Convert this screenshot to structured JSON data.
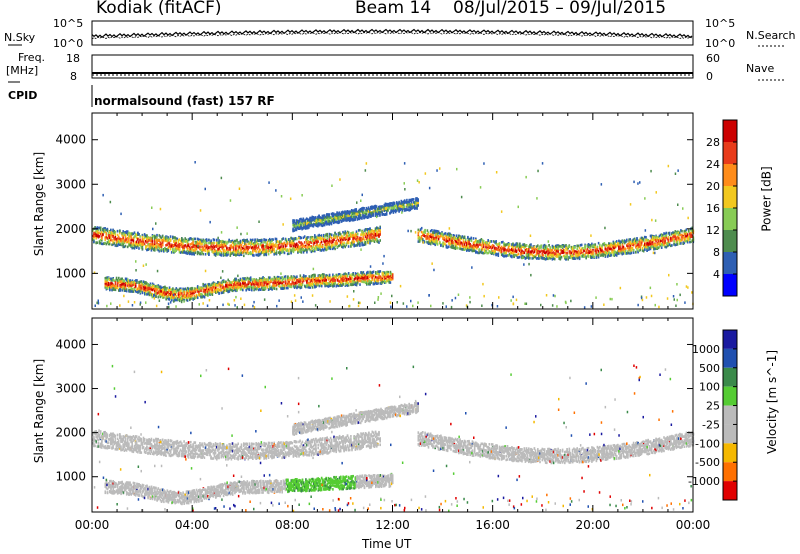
{
  "header": {
    "station": "Kodiak (fitACF)",
    "beam": "Beam 14",
    "date_range": "08/Jul/2015 – 09/Jul/2015"
  },
  "top_panels": {
    "nsky_label": "N.Sky",
    "nsky_ticks": [
      "10^5",
      "10^0"
    ],
    "nsearch_label": "N.Search",
    "nsearch_ticks": [
      "10^5",
      "10^0"
    ],
    "freq_label": "Freq.",
    "freq_unit": "[MHz]",
    "freq_ticks": [
      "18",
      "8"
    ],
    "nave_label": "Nave",
    "nave_ticks": [
      "60",
      "0"
    ],
    "cpid_label": "CPID",
    "cpid_text": "normalsound (fast) 157 RF"
  },
  "colors": {
    "power_scale": [
      "#0000ff",
      "#2e5fb3",
      "#4e8c4e",
      "#88cc55",
      "#f2c81f",
      "#ff8c1a",
      "#e83b1a",
      "#cc0000"
    ],
    "velocity_scale": [
      "#e00000",
      "#ff7000",
      "#f5b800",
      "#bbbbbb",
      "#bbbbbb",
      "#55cc33",
      "#3a8a4a",
      "#2050b0",
      "#1a1aa0"
    ]
  },
  "chart_data": [
    {
      "type": "heatmap",
      "title": "Power",
      "xlabel": "Time UT",
      "ylabel": "Slant Range [km]",
      "colorbar_label": "Power [dB]",
      "xticks": [
        "00:00",
        "04:00",
        "08:00",
        "12:00",
        "16:00",
        "20:00",
        "00:00"
      ],
      "yticks": [
        1000,
        2000,
        3000,
        4000
      ],
      "ylim": [
        200,
        4600
      ],
      "xlim_hours": [
        0,
        24
      ],
      "colorbar_ticks": [
        4,
        8,
        12,
        16,
        20,
        24,
        28
      ],
      "colorbar_range": [
        0,
        32
      ]
    },
    {
      "type": "heatmap",
      "title": "Velocity",
      "xlabel": "Time UT",
      "ylabel": "Slant Range [km]",
      "colorbar_label": "Velocity [m s^-1]",
      "xticks": [
        "00:00",
        "04:00",
        "08:00",
        "12:00",
        "16:00",
        "20:00",
        "00:00"
      ],
      "yticks": [
        1000,
        2000,
        3000,
        4000
      ],
      "ylim": [
        200,
        4600
      ],
      "xlim_hours": [
        0,
        24
      ],
      "colorbar_ticks": [
        "1000",
        "500",
        "100",
        "25",
        "-25",
        "-100",
        "-500",
        "-1000"
      ]
    }
  ]
}
